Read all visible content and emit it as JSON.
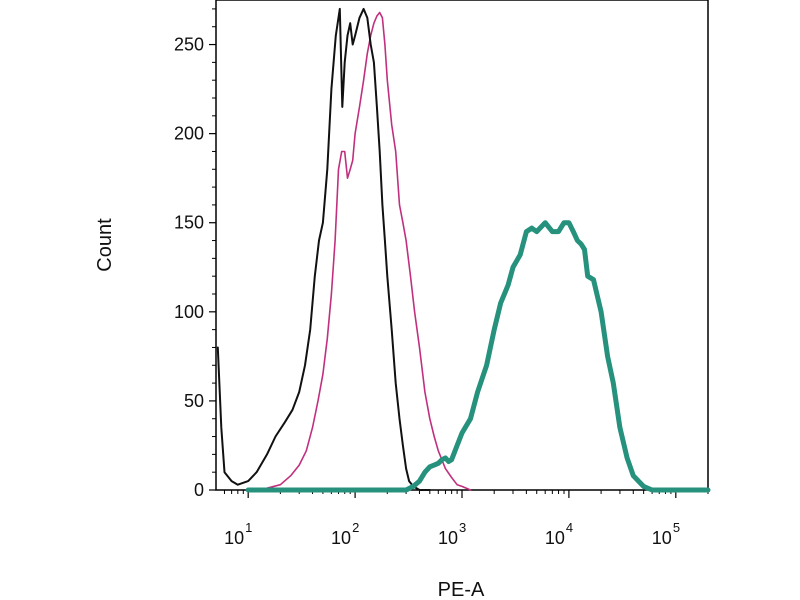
{
  "chart_data": {
    "type": "line",
    "title": "",
    "xlabel": "PE-A",
    "ylabel": "Count",
    "x_scale": "log",
    "xlim": [
      5,
      200000
    ],
    "ylim": [
      0,
      275
    ],
    "grid": false,
    "legend": "none",
    "x_ticks": [
      {
        "base": "10",
        "exp": "1",
        "value": 10
      },
      {
        "base": "10",
        "exp": "2",
        "value": 100
      },
      {
        "base": "10",
        "exp": "3",
        "value": 1000
      },
      {
        "base": "10",
        "exp": "4",
        "value": 10000
      },
      {
        "base": "10",
        "exp": "5",
        "value": 100000
      }
    ],
    "y_ticks": [
      "0",
      "50",
      "100",
      "150",
      "200",
      "250"
    ],
    "series": [
      {
        "color": "#111111",
        "x": [
          5.2,
          5.6,
          6,
          7,
          8,
          10,
          12,
          15,
          18,
          22,
          26,
          30,
          34,
          38,
          42,
          46,
          50,
          55,
          60,
          66,
          72,
          76,
          80,
          85,
          90,
          95,
          100,
          110,
          120,
          130,
          140,
          150,
          160,
          170,
          180,
          190,
          200,
          220,
          240,
          260,
          280,
          300,
          320,
          350,
          400,
          500
        ],
        "y": [
          80,
          35,
          10,
          5,
          3,
          5,
          10,
          20,
          30,
          38,
          45,
          55,
          70,
          90,
          120,
          140,
          150,
          180,
          225,
          255,
          270,
          215,
          240,
          255,
          262,
          250,
          255,
          265,
          270,
          265,
          250,
          240,
          215,
          190,
          160,
          140,
          120,
          90,
          60,
          40,
          25,
          12,
          5,
          2,
          0,
          0
        ]
      },
      {
        "color": "#c0307e",
        "x": [
          10,
          15,
          20,
          25,
          30,
          35,
          40,
          45,
          50,
          55,
          60,
          65,
          70,
          75,
          80,
          85,
          90,
          95,
          100,
          110,
          120,
          130,
          140,
          150,
          160,
          170,
          180,
          190,
          200,
          220,
          240,
          260,
          280,
          300,
          330,
          360,
          400,
          450,
          500,
          550,
          600,
          700,
          800,
          900,
          1000,
          1200
        ],
        "y": [
          0,
          1,
          3,
          8,
          14,
          22,
          35,
          50,
          65,
          85,
          110,
          140,
          180,
          190,
          190,
          175,
          180,
          185,
          200,
          215,
          230,
          245,
          255,
          262,
          266,
          268,
          265,
          250,
          230,
          205,
          190,
          160,
          150,
          140,
          120,
          100,
          80,
          55,
          40,
          30,
          22,
          12,
          7,
          3,
          2,
          0
        ]
      },
      {
        "color": "#26917c",
        "x": [
          10,
          50,
          100,
          200,
          300,
          350,
          400,
          450,
          500,
          550,
          600,
          650,
          700,
          750,
          800,
          900,
          1000,
          1200,
          1400,
          1700,
          2000,
          2300,
          2700,
          3000,
          3500,
          4000,
          4500,
          5000,
          6000,
          7000,
          8000,
          9000,
          10000,
          11000,
          12000,
          13000,
          14000,
          15000,
          17000,
          20000,
          23000,
          26000,
          30000,
          35000,
          40000,
          50000,
          60000,
          80000,
          100000,
          200000
        ],
        "y": [
          0,
          0,
          0,
          0,
          0,
          2,
          5,
          10,
          13,
          14,
          15,
          17,
          18,
          16,
          17,
          25,
          32,
          40,
          55,
          70,
          90,
          105,
          115,
          125,
          132,
          145,
          147,
          145,
          150,
          145,
          145,
          150,
          150,
          145,
          140,
          138,
          135,
          120,
          118,
          100,
          75,
          60,
          35,
          18,
          8,
          2,
          0,
          0,
          0,
          0
        ]
      }
    ]
  }
}
